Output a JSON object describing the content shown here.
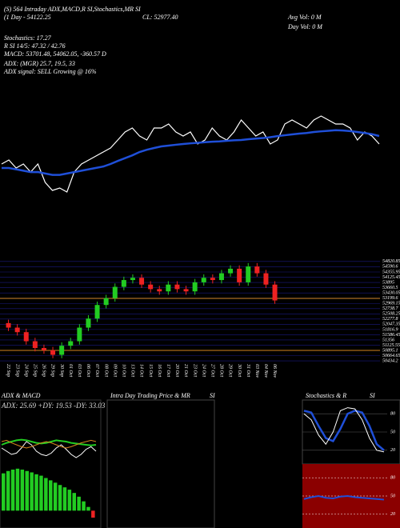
{
  "header": [
    "(S) 564 Intraday ADX,MACD,R SI,Stochastics,MR SI",
    "(1 Day - 54122.25",
    "CL: 52977.40",
    "Avg Vol: 0  M",
    "Day Vol: 0  M",
    "Stochastics: 17.27",
    "R SI 14/5: 47.32 / 42.76",
    "MACD: 53701.48, 54062.05, -360.57 D",
    "ADX: (MGR) 25.7, 19.5, 33",
    "ADX signal: SELL Growing @ 16%"
  ],
  "chart_data": [
    {
      "type": "line",
      "ylim": [
        50500,
        54800
      ],
      "series": [
        {
          "color": "#ffffff",
          "values": [
            51790,
            51933,
            51647,
            51790,
            51503,
            51790,
            51130,
            50844,
            50930,
            50787,
            51503,
            51790,
            51933,
            52077,
            52220,
            52363,
            52650,
            52937,
            53080,
            52793,
            52650,
            53080,
            53080,
            53223,
            52937,
            52793,
            52937,
            52507,
            52650,
            53080,
            52793,
            52650,
            52937,
            53367,
            53080,
            52793,
            52937,
            52507,
            52650,
            53223,
            53367,
            53223,
            53080,
            53367,
            53510,
            53367,
            53223,
            53223,
            53080,
            52650,
            52937,
            52793,
            52507
          ]
        },
        {
          "color": "#1f4fd8",
          "values": [
            51647,
            51647,
            51600,
            51550,
            51500,
            51503,
            51450,
            51400,
            51400,
            51450,
            51500,
            51550,
            51600,
            51650,
            51700,
            51790,
            51900,
            52000,
            52100,
            52220,
            52300,
            52363,
            52420,
            52450,
            52480,
            52507,
            52530,
            52550,
            52570,
            52590,
            52600,
            52620,
            52640,
            52650,
            52680,
            52700,
            52720,
            52750,
            52790,
            52820,
            52850,
            52880,
            52900,
            52937,
            52960,
            52980,
            53000,
            52990,
            52970,
            52937,
            52900,
            52860,
            52793
          ]
        }
      ]
    },
    {
      "type": "candlestick",
      "categories": [
        "22 Sep",
        "23 Sep",
        "24 Sep",
        "25 Sep",
        "26 Sep",
        "29 Sep",
        "30 Sep",
        "01 Oct",
        "03 Oct",
        "06 Oct",
        "07 Oct",
        "08 Oct",
        "09 Oct",
        "10 Oct",
        "13 Oct",
        "14 Oct",
        "15 Oct",
        "16 Oct",
        "17 Oct",
        "20 Oct",
        "21 Oct",
        "23 Oct",
        "24 Oct",
        "27 Oct",
        "28 Oct",
        "29 Oct",
        "30 Oct",
        "31 Oct",
        "03 Nov",
        "04 Nov",
        "06 Nov"
      ],
      "open": [
        52100,
        51900,
        51700,
        51300,
        51000,
        50900,
        50700,
        51100,
        51300,
        51900,
        52300,
        52900,
        53200,
        53700,
        54000,
        54100,
        53800,
        53600,
        53500,
        53800,
        53600,
        53500,
        53900,
        54100,
        54000,
        54300,
        54500,
        53900,
        54600,
        54300,
        53800
      ],
      "high": [
        52250,
        52050,
        51850,
        51450,
        51150,
        51050,
        51250,
        51450,
        52050,
        52450,
        53050,
        53350,
        53850,
        54150,
        54250,
        54250,
        53950,
        53750,
        53950,
        53950,
        53750,
        54050,
        54250,
        54250,
        54450,
        54650,
        54650,
        54750,
        54750,
        54450,
        53950
      ],
      "low": [
        51750,
        51550,
        51150,
        50850,
        50750,
        50550,
        50550,
        50950,
        51150,
        51750,
        52150,
        52750,
        53050,
        53550,
        53850,
        53650,
        53450,
        53350,
        53350,
        53450,
        53350,
        53350,
        53750,
        53850,
        53850,
        54150,
        53750,
        53750,
        54150,
        53650,
        52950
      ],
      "close": [
        51900,
        51700,
        51300,
        51000,
        50900,
        50700,
        51100,
        51300,
        51900,
        52300,
        52900,
        53200,
        53700,
        54000,
        54100,
        53800,
        53600,
        53500,
        53800,
        53600,
        53500,
        53900,
        54100,
        54000,
        54300,
        54500,
        53900,
        54600,
        54300,
        53800,
        53100
      ],
      "up_color": "#22cc22",
      "down_color": "#ee2222",
      "ylim": [
        50400,
        54850
      ],
      "yticks": [
        54820.85,
        54590.6,
        54355.95,
        54125.45,
        53895,
        53660.5,
        53430.05,
        53199.6,
        52969.15,
        52738.7,
        52508.25,
        52277.8,
        52047.35,
        51816.9,
        51586.45,
        51356,
        51125.55,
        50895.1,
        50664.65,
        50434.2
      ],
      "grid": true,
      "hlines": [
        53190,
        50895
      ],
      "hline_color": "#d2841e"
    },
    {
      "type": "macd",
      "title": "ADX  & MACD",
      "subtitle": "ADX: 25.69 +DY: 19.53 -DY: 33.03",
      "ylim": [
        0,
        100
      ],
      "series": [
        {
          "color": "#22cc22",
          "values": [
            55,
            58,
            60,
            62,
            63,
            62,
            60,
            58,
            57,
            58,
            60,
            62,
            61,
            60,
            58,
            57,
            56,
            55,
            54,
            55
          ]
        },
        {
          "color": "#ffffff",
          "values": [
            50,
            45,
            40,
            42,
            50,
            60,
            55,
            45,
            40,
            38,
            42,
            50,
            55,
            48,
            40,
            35,
            40,
            48,
            52,
            45
          ]
        },
        {
          "color": "#d2841e",
          "values": [
            60,
            62,
            58,
            55,
            52,
            50,
            52,
            55,
            58,
            60,
            58,
            55,
            52,
            50,
            52,
            55,
            58,
            60,
            62,
            60
          ]
        }
      ],
      "histogram": {
        "color": "#22cc22",
        "neg_color": "#ee2222",
        "ylim": [
          -20,
          100
        ],
        "values": [
          80,
          85,
          88,
          90,
          88,
          85,
          82,
          78,
          75,
          70,
          65,
          60,
          55,
          50,
          45,
          38,
          30,
          20,
          8,
          -15
        ]
      }
    },
    {
      "type": "blank",
      "title": "Intra  Day Trading Price  & MR",
      "subtitle": "SI"
    },
    {
      "type": "stochastics",
      "title": "Stochastics & R",
      "subtitle": "SI",
      "ylim": [
        0,
        100
      ],
      "yticks": [
        20,
        50,
        80
      ],
      "series": [
        {
          "color": "#1f4fd8",
          "values": [
            85,
            82,
            60,
            40,
            35,
            55,
            80,
            85,
            82,
            60,
            30,
            20
          ]
        },
        {
          "color": "#ffffff",
          "values": [
            80,
            70,
            45,
            30,
            50,
            85,
            90,
            88,
            70,
            40,
            20,
            17.27
          ]
        }
      ],
      "rsi": {
        "ylim": [
          0,
          100
        ],
        "yticks": [
          20,
          50,
          80
        ],
        "series": [
          {
            "color": "#1f4fd8",
            "values": [
              45,
              48,
              50,
              47,
              46,
              49,
              50,
              48,
              47,
              46,
              45,
              44
            ]
          }
        ]
      }
    }
  ]
}
